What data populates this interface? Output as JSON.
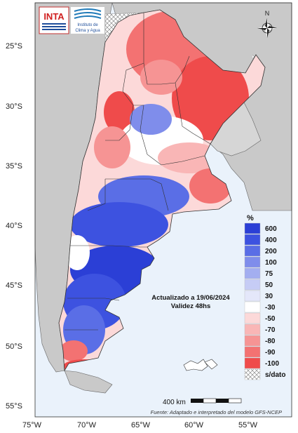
{
  "logos": {
    "inta": "INTA",
    "instituto_line1": "Instituto de",
    "instituto_line2": "Clima y Agua"
  },
  "compass": {
    "north": "N"
  },
  "lat_labels": [
    "25°S",
    "30°S",
    "35°S",
    "40°S",
    "45°S",
    "50°S",
    "55°S"
  ],
  "lon_labels": [
    "75°W",
    "70°W",
    "65°W",
    "60°W",
    "55°W"
  ],
  "legend": {
    "title": "%",
    "entries": [
      {
        "label": "600",
        "color": "#2b3fd6"
      },
      {
        "label": "400",
        "color": "#3d52e0"
      },
      {
        "label": "200",
        "color": "#5a6ee6"
      },
      {
        "label": "100",
        "color": "#7f8deb"
      },
      {
        "label": "75",
        "color": "#a3aef0"
      },
      {
        "label": "50",
        "color": "#c6ccf5"
      },
      {
        "label": "30",
        "color": "#e4e7fa"
      },
      {
        "label": "-30",
        "color": "#ffffff"
      },
      {
        "label": "-50",
        "color": "#fcd9d9"
      },
      {
        "label": "-70",
        "color": "#f9b6b6"
      },
      {
        "label": "-80",
        "color": "#f69494"
      },
      {
        "label": "-90",
        "color": "#f37272"
      },
      {
        "label": "-100",
        "color": "#ef4b4b"
      },
      {
        "label": "s/dato",
        "color": "hatch"
      }
    ]
  },
  "update_text": "Actualizado a 19/06/2024",
  "validity_text": "Validez 48hs",
  "scale_label": "400 km",
  "source_text": "Fuente: Adaptado e interpretado del modelo GFS-NCEP",
  "colors": {
    "ocean": "#eaf2fb",
    "land_neighbor": "#c9c9c9",
    "positive": "#3d52e0",
    "negative": "#ef4b4b"
  }
}
